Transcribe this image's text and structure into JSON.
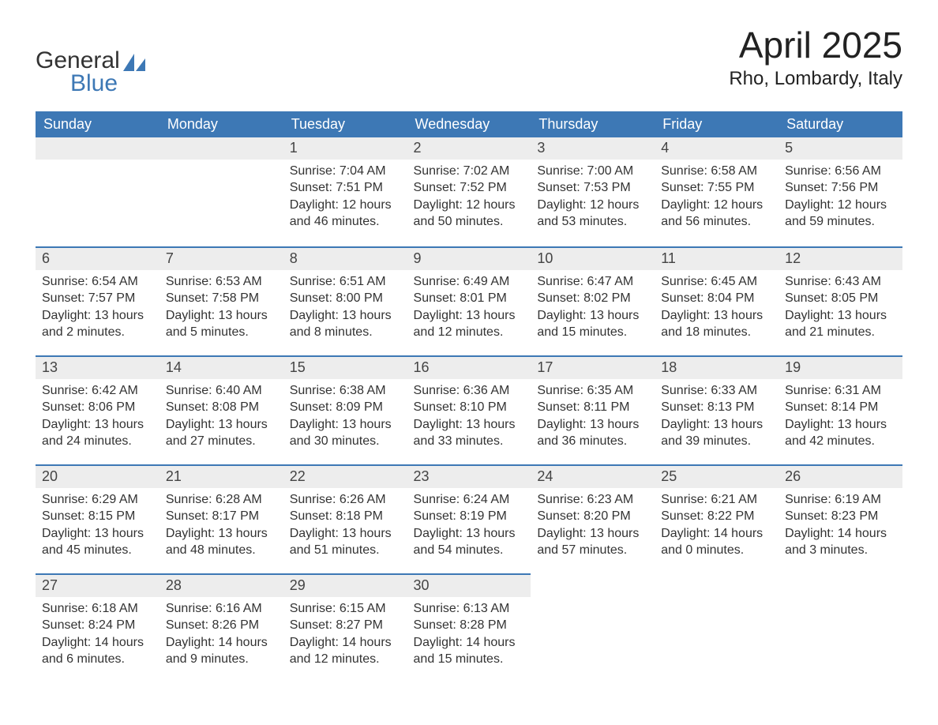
{
  "brand": {
    "text1": "General",
    "text2": "Blue",
    "sail_color": "#3d78b5"
  },
  "header": {
    "month_title": "April 2025",
    "location": "Rho, Lombardy, Italy"
  },
  "colors": {
    "header_bg": "#3d78b5",
    "header_text": "#ffffff",
    "strip_bg": "#ededed",
    "strip_border": "#3d78b5",
    "body_text": "#333333",
    "page_bg": "#ffffff"
  },
  "week_headers": [
    "Sunday",
    "Monday",
    "Tuesday",
    "Wednesday",
    "Thursday",
    "Friday",
    "Saturday"
  ],
  "weeks": [
    [
      null,
      null,
      {
        "day": "1",
        "sunrise": "Sunrise: 7:04 AM",
        "sunset": "Sunset: 7:51 PM",
        "daylight": "Daylight: 12 hours and 46 minutes."
      },
      {
        "day": "2",
        "sunrise": "Sunrise: 7:02 AM",
        "sunset": "Sunset: 7:52 PM",
        "daylight": "Daylight: 12 hours and 50 minutes."
      },
      {
        "day": "3",
        "sunrise": "Sunrise: 7:00 AM",
        "sunset": "Sunset: 7:53 PM",
        "daylight": "Daylight: 12 hours and 53 minutes."
      },
      {
        "day": "4",
        "sunrise": "Sunrise: 6:58 AM",
        "sunset": "Sunset: 7:55 PM",
        "daylight": "Daylight: 12 hours and 56 minutes."
      },
      {
        "day": "5",
        "sunrise": "Sunrise: 6:56 AM",
        "sunset": "Sunset: 7:56 PM",
        "daylight": "Daylight: 12 hours and 59 minutes."
      }
    ],
    [
      {
        "day": "6",
        "sunrise": "Sunrise: 6:54 AM",
        "sunset": "Sunset: 7:57 PM",
        "daylight": "Daylight: 13 hours and 2 minutes."
      },
      {
        "day": "7",
        "sunrise": "Sunrise: 6:53 AM",
        "sunset": "Sunset: 7:58 PM",
        "daylight": "Daylight: 13 hours and 5 minutes."
      },
      {
        "day": "8",
        "sunrise": "Sunrise: 6:51 AM",
        "sunset": "Sunset: 8:00 PM",
        "daylight": "Daylight: 13 hours and 8 minutes."
      },
      {
        "day": "9",
        "sunrise": "Sunrise: 6:49 AM",
        "sunset": "Sunset: 8:01 PM",
        "daylight": "Daylight: 13 hours and 12 minutes."
      },
      {
        "day": "10",
        "sunrise": "Sunrise: 6:47 AM",
        "sunset": "Sunset: 8:02 PM",
        "daylight": "Daylight: 13 hours and 15 minutes."
      },
      {
        "day": "11",
        "sunrise": "Sunrise: 6:45 AM",
        "sunset": "Sunset: 8:04 PM",
        "daylight": "Daylight: 13 hours and 18 minutes."
      },
      {
        "day": "12",
        "sunrise": "Sunrise: 6:43 AM",
        "sunset": "Sunset: 8:05 PM",
        "daylight": "Daylight: 13 hours and 21 minutes."
      }
    ],
    [
      {
        "day": "13",
        "sunrise": "Sunrise: 6:42 AM",
        "sunset": "Sunset: 8:06 PM",
        "daylight": "Daylight: 13 hours and 24 minutes."
      },
      {
        "day": "14",
        "sunrise": "Sunrise: 6:40 AM",
        "sunset": "Sunset: 8:08 PM",
        "daylight": "Daylight: 13 hours and 27 minutes."
      },
      {
        "day": "15",
        "sunrise": "Sunrise: 6:38 AM",
        "sunset": "Sunset: 8:09 PM",
        "daylight": "Daylight: 13 hours and 30 minutes."
      },
      {
        "day": "16",
        "sunrise": "Sunrise: 6:36 AM",
        "sunset": "Sunset: 8:10 PM",
        "daylight": "Daylight: 13 hours and 33 minutes."
      },
      {
        "day": "17",
        "sunrise": "Sunrise: 6:35 AM",
        "sunset": "Sunset: 8:11 PM",
        "daylight": "Daylight: 13 hours and 36 minutes."
      },
      {
        "day": "18",
        "sunrise": "Sunrise: 6:33 AM",
        "sunset": "Sunset: 8:13 PM",
        "daylight": "Daylight: 13 hours and 39 minutes."
      },
      {
        "day": "19",
        "sunrise": "Sunrise: 6:31 AM",
        "sunset": "Sunset: 8:14 PM",
        "daylight": "Daylight: 13 hours and 42 minutes."
      }
    ],
    [
      {
        "day": "20",
        "sunrise": "Sunrise: 6:29 AM",
        "sunset": "Sunset: 8:15 PM",
        "daylight": "Daylight: 13 hours and 45 minutes."
      },
      {
        "day": "21",
        "sunrise": "Sunrise: 6:28 AM",
        "sunset": "Sunset: 8:17 PM",
        "daylight": "Daylight: 13 hours and 48 minutes."
      },
      {
        "day": "22",
        "sunrise": "Sunrise: 6:26 AM",
        "sunset": "Sunset: 8:18 PM",
        "daylight": "Daylight: 13 hours and 51 minutes."
      },
      {
        "day": "23",
        "sunrise": "Sunrise: 6:24 AM",
        "sunset": "Sunset: 8:19 PM",
        "daylight": "Daylight: 13 hours and 54 minutes."
      },
      {
        "day": "24",
        "sunrise": "Sunrise: 6:23 AM",
        "sunset": "Sunset: 8:20 PM",
        "daylight": "Daylight: 13 hours and 57 minutes."
      },
      {
        "day": "25",
        "sunrise": "Sunrise: 6:21 AM",
        "sunset": "Sunset: 8:22 PM",
        "daylight": "Daylight: 14 hours and 0 minutes."
      },
      {
        "day": "26",
        "sunrise": "Sunrise: 6:19 AM",
        "sunset": "Sunset: 8:23 PM",
        "daylight": "Daylight: 14 hours and 3 minutes."
      }
    ],
    [
      {
        "day": "27",
        "sunrise": "Sunrise: 6:18 AM",
        "sunset": "Sunset: 8:24 PM",
        "daylight": "Daylight: 14 hours and 6 minutes."
      },
      {
        "day": "28",
        "sunrise": "Sunrise: 6:16 AM",
        "sunset": "Sunset: 8:26 PM",
        "daylight": "Daylight: 14 hours and 9 minutes."
      },
      {
        "day": "29",
        "sunrise": "Sunrise: 6:15 AM",
        "sunset": "Sunset: 8:27 PM",
        "daylight": "Daylight: 14 hours and 12 minutes."
      },
      {
        "day": "30",
        "sunrise": "Sunrise: 6:13 AM",
        "sunset": "Sunset: 8:28 PM",
        "daylight": "Daylight: 14 hours and 15 minutes."
      },
      null,
      null,
      null
    ]
  ]
}
